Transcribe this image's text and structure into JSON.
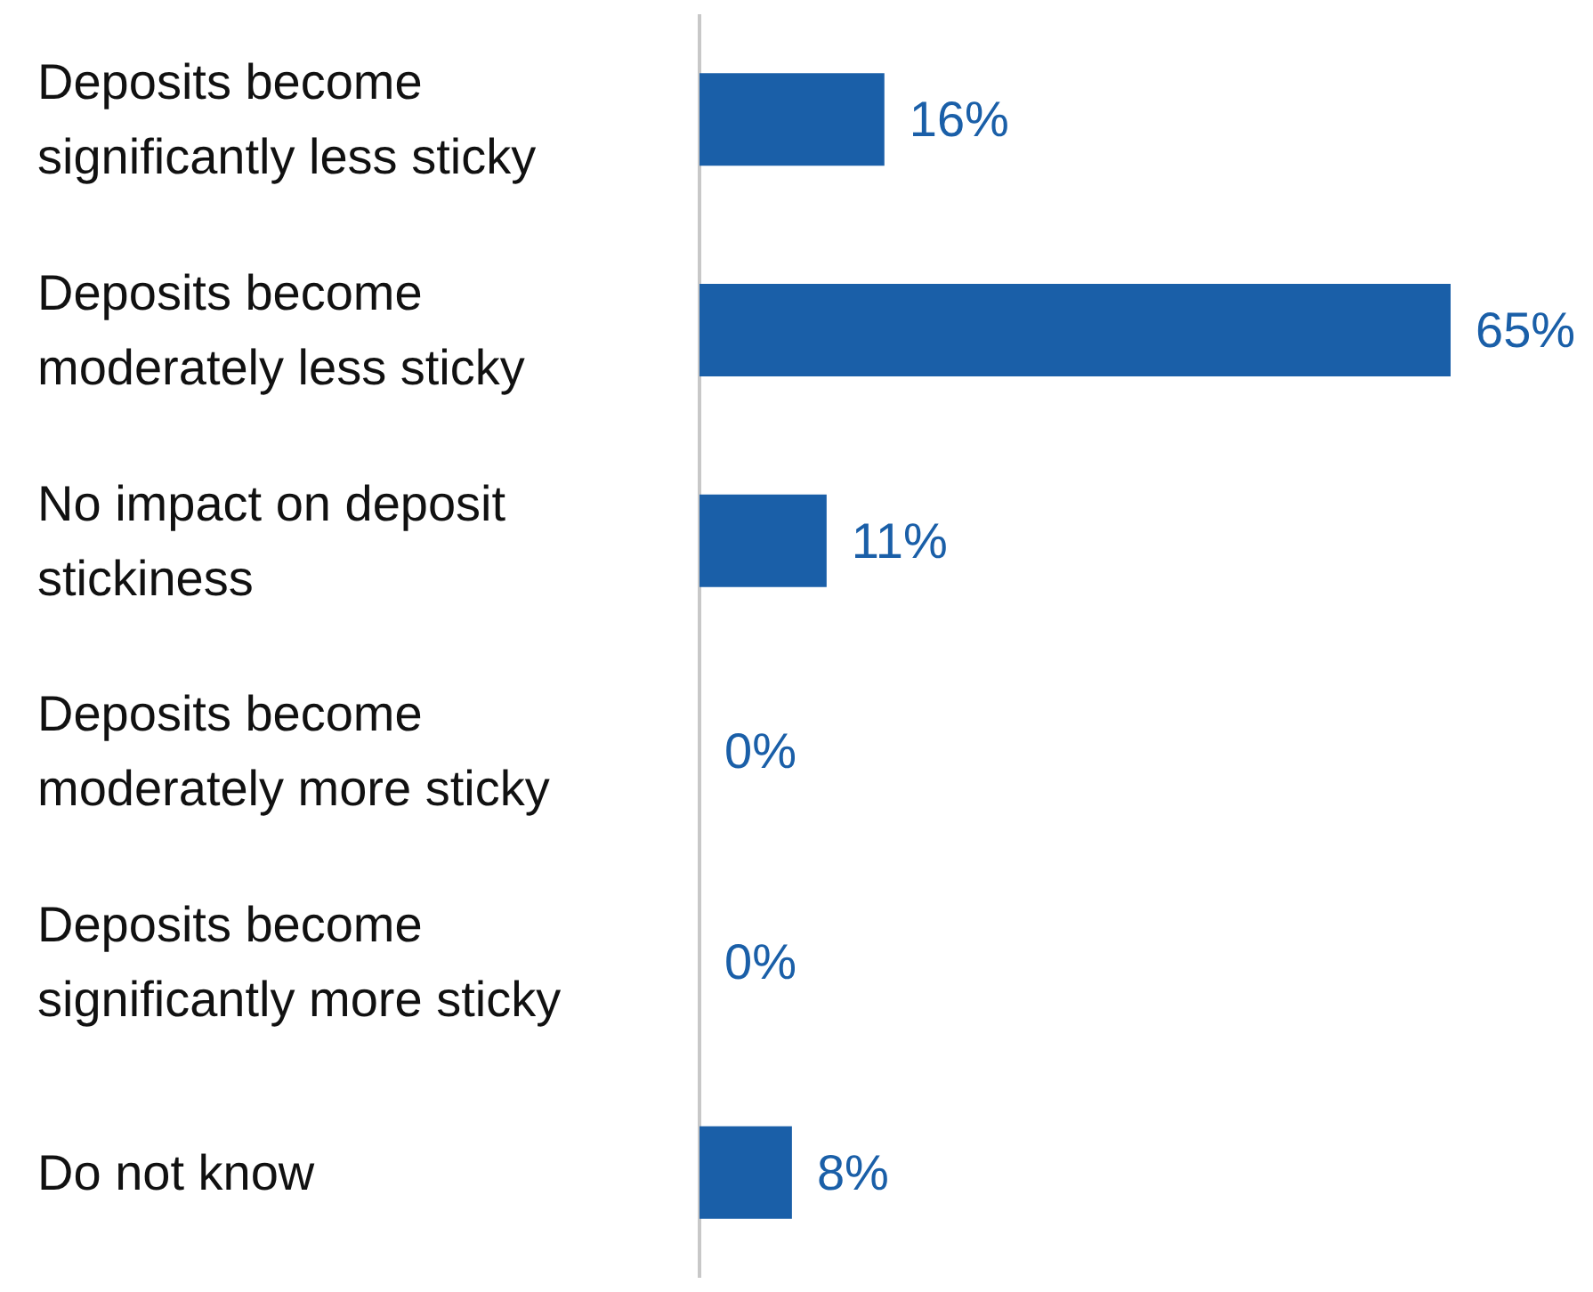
{
  "chart_data": {
    "type": "bar",
    "orientation": "horizontal",
    "categories": [
      "Deposits become significantly less sticky",
      "Deposits become moderately less sticky",
      "No impact on deposit stickiness",
      "Deposits become moderately more sticky",
      "Deposits become significantly more sticky",
      "Do not know"
    ],
    "values": [
      16,
      65,
      11,
      0,
      0,
      8
    ],
    "value_labels": [
      "16%",
      "65%",
      "11%",
      "0%",
      "0%",
      "8%"
    ],
    "color": "#1a5fa8"
  }
}
